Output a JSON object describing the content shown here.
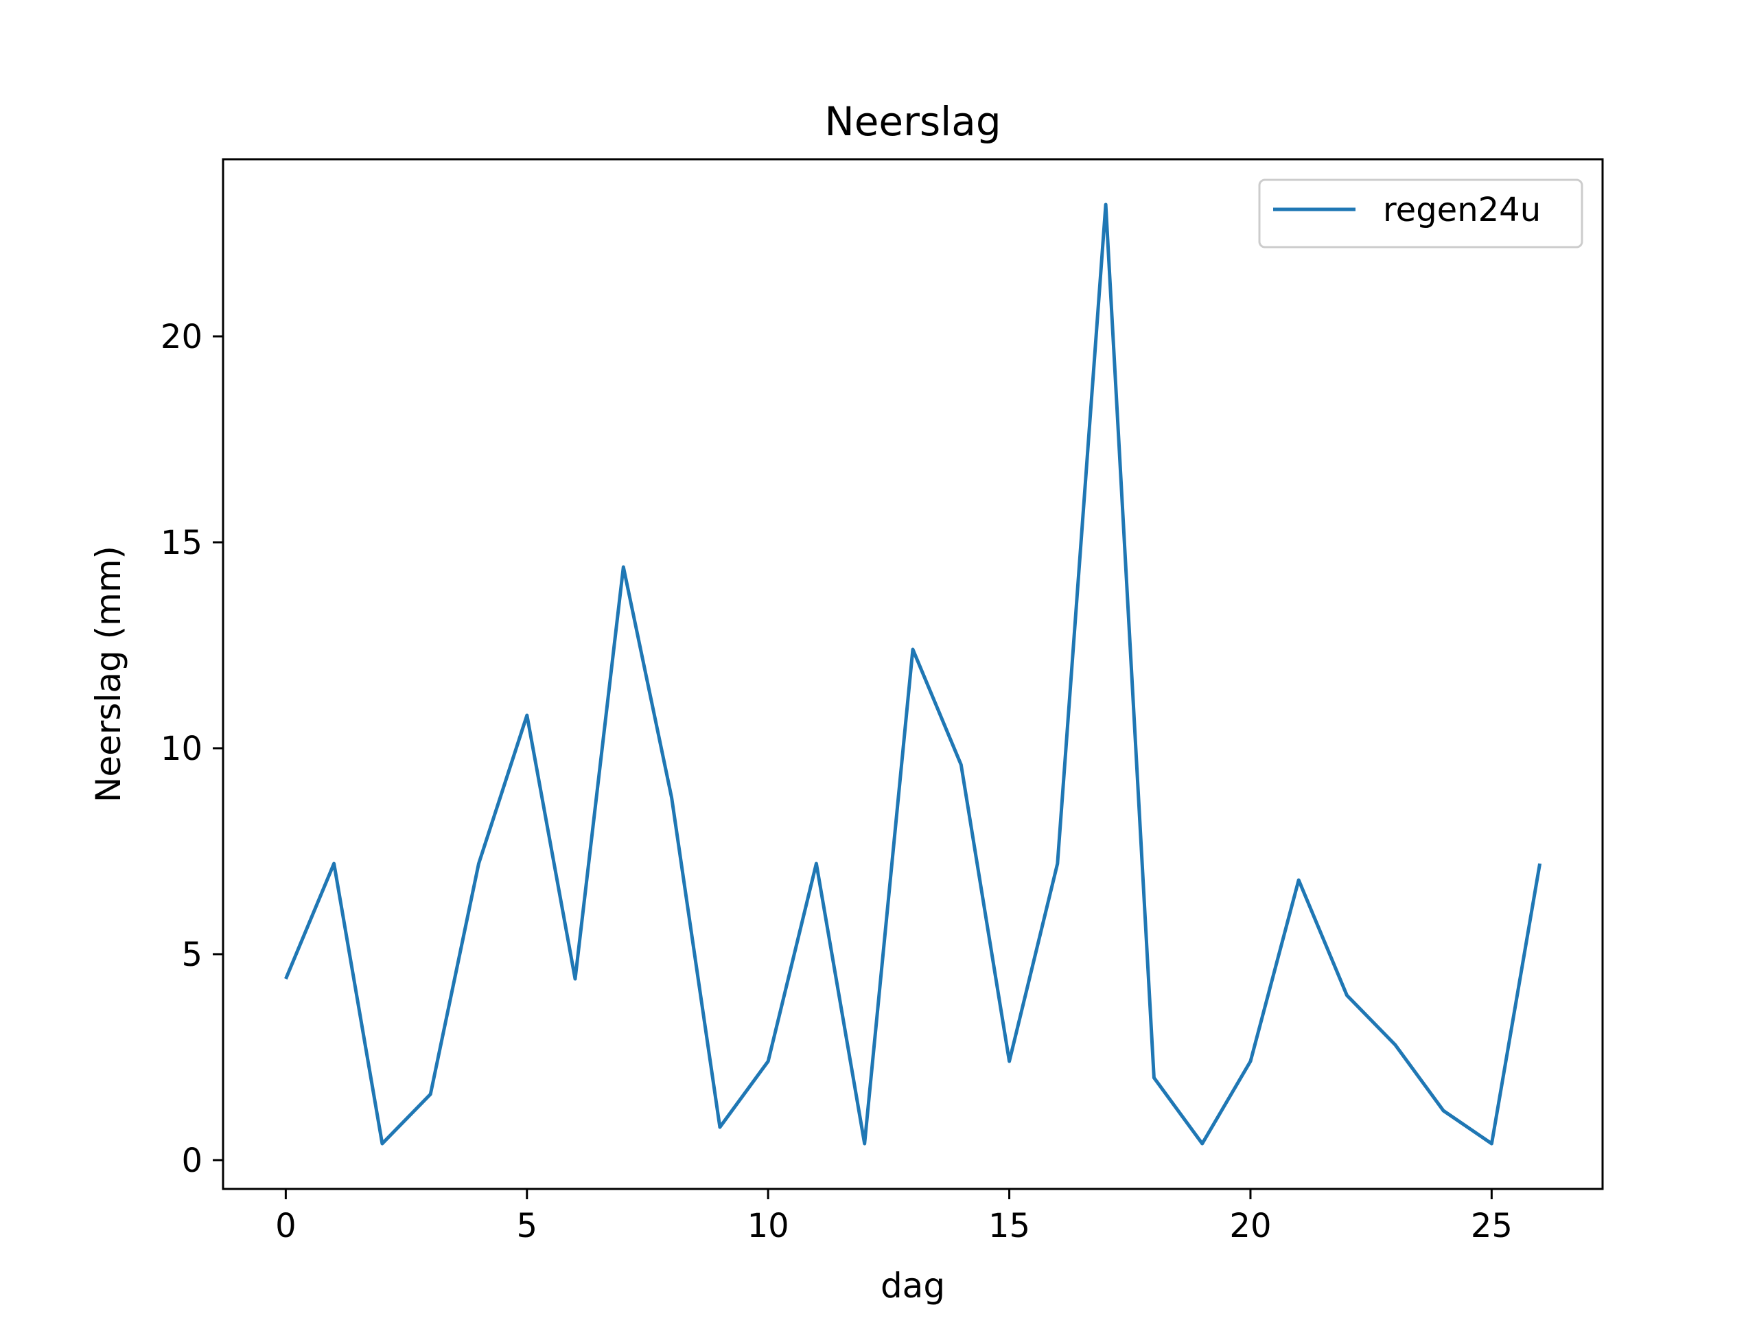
{
  "chart_data": {
    "type": "line",
    "title": "Neerslag",
    "xlabel": "dag",
    "ylabel": "Neerslag (mm)",
    "xlim": [
      -1.3,
      27.3
    ],
    "ylim": [
      -0.7,
      24.3
    ],
    "xticks": [
      0,
      5,
      10,
      15,
      20,
      25
    ],
    "yticks": [
      0,
      5,
      10,
      15,
      20
    ],
    "grid": false,
    "legend_position": "top-right",
    "series": [
      {
        "name": "regen24u",
        "color": "#1f77b4",
        "x": [
          0,
          1,
          2,
          3,
          4,
          5,
          6,
          7,
          8,
          9,
          10,
          11,
          12,
          13,
          14,
          15,
          16,
          17,
          18,
          19,
          20,
          21,
          22,
          23,
          24,
          25,
          26
        ],
        "y": [
          4.4,
          7.2,
          0.4,
          1.6,
          7.2,
          10.8,
          4.4,
          14.4,
          8.8,
          0.8,
          2.4,
          7.2,
          0.4,
          12.4,
          9.6,
          2.4,
          7.2,
          23.2,
          2.0,
          0.4,
          2.4,
          6.8,
          4.0,
          2.8,
          1.2,
          0.4,
          7.2
        ]
      }
    ]
  }
}
